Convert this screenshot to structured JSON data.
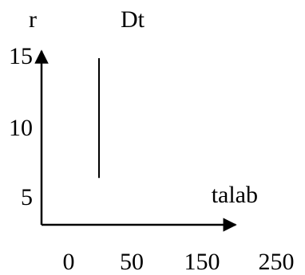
{
  "chart_data": {
    "type": "line",
    "title": "",
    "ylabel": "r",
    "xlabel": "talab",
    "x_ticks": [
      0,
      50,
      150,
      250
    ],
    "y_ticks": [
      15,
      10,
      5
    ],
    "series": [
      {
        "name": "Dt",
        "points": [
          [
            50,
            6
          ],
          [
            50,
            15
          ]
        ]
      }
    ],
    "grid": false,
    "legend": "none"
  }
}
